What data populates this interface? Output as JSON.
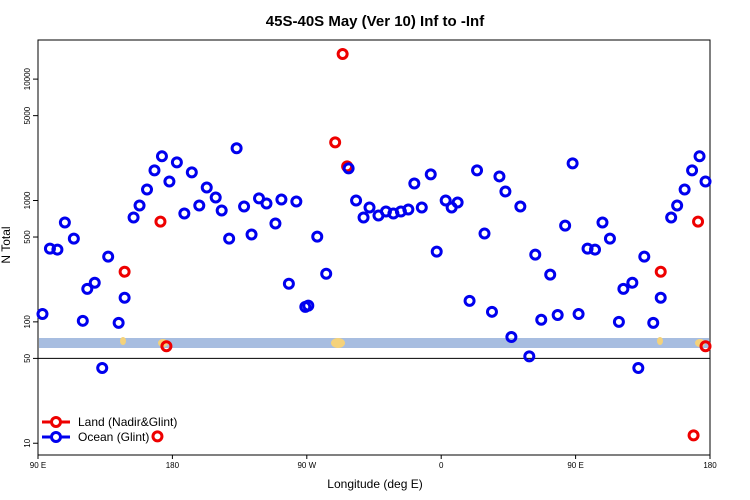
{
  "chart_data": {
    "type": "scatter",
    "title": "45S-40S May (Ver 10)   Inf to -Inf",
    "x_label": "Longitude (deg E)",
    "y_label": "N Total",
    "log_y": true,
    "xlim": [
      90,
      540
    ],
    "ylim": [
      8,
      21000
    ],
    "xticks": [
      {
        "value": 90,
        "label": "90 E"
      },
      180,
      {
        "value": 270,
        "label": "90 W"
      },
      {
        "value": 360,
        "label": "0"
      },
      {
        "value": 450,
        "label": "90 E"
      },
      {
        "value": 540,
        "label": "180"
      }
    ],
    "yticks": [
      10,
      50,
      100,
      500,
      1000,
      5000,
      10000
    ],
    "hline": 50,
    "legend": "bottom left",
    "series": [
      {
        "name": "Land (Nadir&Glint)",
        "color": "#ee0000",
        "x": [
          148,
          172,
          176,
          289,
          294,
          297,
          170,
          507,
          532,
          537,
          529
        ],
        "values": [
          259,
          670,
          63,
          3013,
          16100,
          1910,
          11.4,
          259,
          670,
          63,
          11.6
        ]
      },
      {
        "name": "Ocean (Glint)",
        "color": "#0000ee",
        "x": [
          93,
          98,
          103,
          108,
          114,
          120,
          123,
          128,
          133,
          137,
          144,
          148,
          154,
          158,
          163,
          168,
          173,
          178,
          183,
          188,
          193,
          198,
          203,
          209,
          213,
          218,
          223,
          228,
          233,
          238,
          243,
          249,
          253,
          258,
          263,
          269,
          271,
          277,
          283,
          298,
          303,
          308,
          312,
          318,
          323,
          328,
          333,
          338,
          342,
          347,
          353,
          357,
          363,
          367,
          371,
          379,
          384,
          389,
          394,
          399,
          403,
          407,
          413,
          419,
          423,
          427,
          433,
          438,
          443,
          448,
          452,
          458,
          463,
          468,
          473,
          479,
          482,
          488,
          492,
          496,
          502,
          507,
          514,
          518,
          523,
          528,
          533,
          537
        ],
        "values": [
          116,
          401,
          394,
          658,
          485,
          102,
          187,
          210,
          41.7,
          345,
          98,
          158,
          724,
          910,
          1233,
          1770,
          2312,
          1435,
          2061,
          782,
          1703,
          910,
          1280,
          1059,
          827,
          485,
          2692,
          892,
          524,
          1040,
          945,
          646,
          1019,
          206,
          981,
          133,
          136,
          504,
          249,
          1837,
          1000,
          724,
          875,
          752,
          811,
          782,
          811,
          843,
          1381,
          875,
          1640,
          379,
          1000,
          875,
          962,
          149,
          1770,
          534,
          121,
          1578,
          1186,
          75,
          892,
          52,
          358,
          104,
          245,
          114,
          621,
          2023,
          116,
          401,
          394,
          658,
          485,
          100,
          187,
          210,
          41.7,
          345,
          98,
          158,
          724,
          910,
          1233,
          1770,
          2312,
          1435
        ]
      }
    ]
  }
}
